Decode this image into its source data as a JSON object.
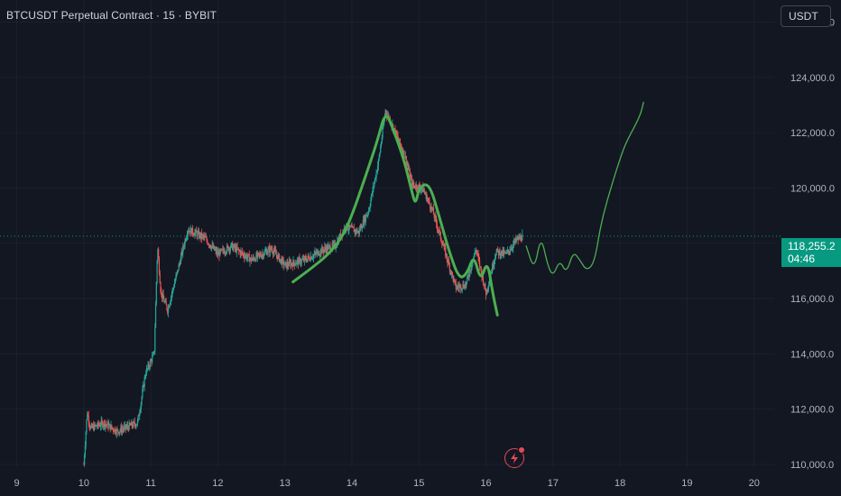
{
  "header": {
    "title": "BTCUSDT Perpetual Contract · 15 · BYBIT"
  },
  "currency_button": {
    "label": "USDT"
  },
  "price_badge": {
    "price": "118,255.2",
    "countdown": "04:46"
  },
  "colors": {
    "background": "#131722",
    "up_candle": "#26a69a",
    "down_candle": "#ef5350",
    "drawing": "#4caf50",
    "last_price": "#089981"
  },
  "icons": {
    "flash": "flash-icon"
  },
  "chart_data": {
    "type": "candlestick",
    "symbol": "BTCUSDT",
    "interval": "15",
    "exchange": "BYBIT",
    "x_ticks": [
      "9",
      "10",
      "11",
      "12",
      "13",
      "14",
      "15",
      "16",
      "17",
      "18",
      "19",
      "20"
    ],
    "x_tick_values": [
      9,
      10,
      11,
      12,
      13,
      14,
      15,
      16,
      17,
      18,
      19,
      20
    ],
    "xlim": [
      8.75,
      20.3
    ],
    "y_ticks": [
      "110,000.0",
      "112,000.0",
      "114,000.0",
      "116,000.0",
      "118,000.0",
      "120,000.0",
      "122,000.0",
      "124,000.0",
      "126,000.0"
    ],
    "y_tick_values": [
      110000,
      112000,
      114000,
      116000,
      118000,
      120000,
      122000,
      124000,
      126000
    ],
    "ylim": [
      109900,
      126800
    ],
    "last_price": 118255.2,
    "price_path": [
      [
        10.0,
        110000
      ],
      [
        10.05,
        111900
      ],
      [
        10.1,
        111300
      ],
      [
        10.3,
        111500
      ],
      [
        10.5,
        111200
      ],
      [
        10.8,
        111500
      ],
      [
        10.85,
        112200
      ],
      [
        10.92,
        113300
      ],
      [
        11.05,
        114000
      ],
      [
        11.1,
        117900
      ],
      [
        11.15,
        116200
      ],
      [
        11.25,
        115600
      ],
      [
        11.4,
        117000
      ],
      [
        11.55,
        118500
      ],
      [
        11.8,
        118200
      ],
      [
        12.0,
        117600
      ],
      [
        12.2,
        117900
      ],
      [
        12.5,
        117400
      ],
      [
        12.8,
        117800
      ],
      [
        13.0,
        117200
      ],
      [
        13.3,
        117400
      ],
      [
        13.6,
        117800
      ],
      [
        13.75,
        117900
      ],
      [
        13.9,
        118600
      ],
      [
        14.1,
        118400
      ],
      [
        14.25,
        119200
      ],
      [
        14.4,
        121000
      ],
      [
        14.5,
        122800
      ],
      [
        14.65,
        122000
      ],
      [
        14.8,
        121100
      ],
      [
        14.9,
        120100
      ],
      [
        15.05,
        120000
      ],
      [
        15.2,
        119200
      ],
      [
        15.4,
        117600
      ],
      [
        15.55,
        116400
      ],
      [
        15.7,
        116500
      ],
      [
        15.85,
        117800
      ],
      [
        16.0,
        116200
      ],
      [
        16.15,
        117700
      ],
      [
        16.3,
        117600
      ],
      [
        16.45,
        118100
      ],
      [
        16.55,
        118255.2
      ]
    ],
    "drawings": [
      {
        "name": "projection-thick",
        "points": [
          [
            13.12,
            116600
          ],
          [
            13.4,
            117100
          ],
          [
            13.65,
            117600
          ],
          [
            13.85,
            118200
          ],
          [
            14.0,
            119000
          ],
          [
            14.2,
            120400
          ],
          [
            14.38,
            121700
          ],
          [
            14.5,
            122800
          ],
          [
            14.62,
            122100
          ],
          [
            14.78,
            121000
          ],
          [
            14.9,
            119800
          ],
          [
            14.95,
            119400
          ],
          [
            15.0,
            120000
          ],
          [
            15.15,
            120200
          ],
          [
            15.3,
            119000
          ],
          [
            15.45,
            117700
          ],
          [
            15.6,
            116700
          ],
          [
            15.72,
            116900
          ],
          [
            15.82,
            117600
          ],
          [
            15.92,
            116600
          ],
          [
            16.02,
            117400
          ],
          [
            16.1,
            116200
          ],
          [
            16.17,
            115400
          ]
        ]
      },
      {
        "name": "projection-thin",
        "points": [
          [
            16.6,
            117900
          ],
          [
            16.72,
            117000
          ],
          [
            16.82,
            118300
          ],
          [
            16.92,
            117200
          ],
          [
            17.0,
            116800
          ],
          [
            17.1,
            117400
          ],
          [
            17.2,
            116900
          ],
          [
            17.3,
            117700
          ],
          [
            17.4,
            117400
          ],
          [
            17.5,
            117000
          ],
          [
            17.62,
            117300
          ],
          [
            17.72,
            118800
          ],
          [
            17.9,
            120300
          ],
          [
            18.02,
            121200
          ],
          [
            18.1,
            121700
          ],
          [
            18.3,
            122600
          ],
          [
            18.35,
            123100
          ]
        ]
      }
    ]
  }
}
